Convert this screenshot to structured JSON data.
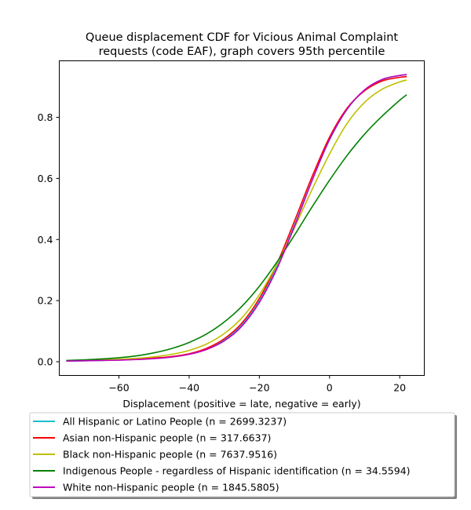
{
  "chart_data": {
    "type": "line",
    "title_lines": [
      "Queue displacement CDF for Vicious Animal Complaint",
      "requests (code EAF), graph covers 95th percentile"
    ],
    "xlabel": "Displacement (positive = late, negative = early)",
    "ylabel": "",
    "xlim": [
      -77,
      27
    ],
    "ylim": [
      -0.045,
      0.985
    ],
    "x_ticks": [
      -60,
      -40,
      -20,
      0,
      20
    ],
    "x_tick_labels": [
      "−60",
      "−40",
      "−20",
      "0",
      "20"
    ],
    "y_ticks": [
      0.0,
      0.2,
      0.4,
      0.6,
      0.8
    ],
    "y_tick_labels": [
      "0.0",
      "0.2",
      "0.4",
      "0.6",
      "0.8"
    ],
    "grid": false,
    "legend_placement": "below plot",
    "x": [
      -75,
      -70,
      -65,
      -60,
      -55,
      -50,
      -45,
      -40,
      -35,
      -30,
      -25,
      -20,
      -15,
      -10,
      -5,
      0,
      5,
      10,
      15,
      20,
      22
    ],
    "series": [
      {
        "name": "All Hispanic or Latino People (n = 2699.3237)",
        "color": "#17becf",
        "values": [
          0.002,
          0.003,
          0.004,
          0.006,
          0.008,
          0.011,
          0.016,
          0.025,
          0.042,
          0.071,
          0.12,
          0.199,
          0.31,
          0.447,
          0.593,
          0.726,
          0.826,
          0.889,
          0.923,
          0.937,
          0.939
        ]
      },
      {
        "name": "Asian non-Hispanic people (n = 317.6637)",
        "color": "#ff0000",
        "values": [
          0.003,
          0.004,
          0.005,
          0.006,
          0.009,
          0.012,
          0.017,
          0.026,
          0.044,
          0.075,
          0.126,
          0.207,
          0.32,
          0.46,
          0.605,
          0.735,
          0.83,
          0.887,
          0.919,
          0.931,
          0.933
        ]
      },
      {
        "name": "Black non-Hispanic people (n = 7637.9516)",
        "color": "#bfbf00",
        "values": [
          0.003,
          0.004,
          0.006,
          0.008,
          0.011,
          0.016,
          0.024,
          0.037,
          0.058,
          0.092,
          0.143,
          0.219,
          0.319,
          0.438,
          0.563,
          0.68,
          0.78,
          0.849,
          0.892,
          0.916,
          0.922
        ]
      },
      {
        "name": "Indigenous People - regardless of Hispanic identification (n = 34.5594)",
        "color": "#008000",
        "values": [
          0.004,
          0.006,
          0.009,
          0.013,
          0.019,
          0.029,
          0.043,
          0.063,
          0.091,
          0.13,
          0.181,
          0.247,
          0.326,
          0.414,
          0.506,
          0.594,
          0.675,
          0.745,
          0.804,
          0.856,
          0.874
        ]
      },
      {
        "name": "White non-Hispanic people (n = 1845.5805)",
        "color": "#bf00bf",
        "values": [
          0.002,
          0.003,
          0.004,
          0.005,
          0.007,
          0.01,
          0.015,
          0.024,
          0.04,
          0.068,
          0.116,
          0.194,
          0.304,
          0.443,
          0.592,
          0.728,
          0.827,
          0.89,
          0.924,
          0.937,
          0.94
        ]
      }
    ]
  }
}
